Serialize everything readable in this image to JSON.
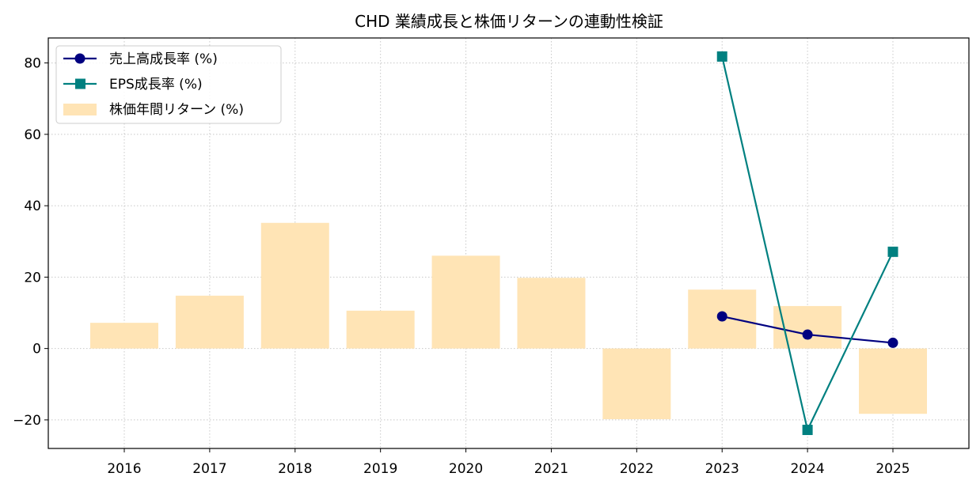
{
  "chart_data": {
    "type": "bar+line",
    "title": "CHD 業績成長と株価リターンの連動性検証",
    "xlabel": "",
    "ylabel": "",
    "categories": [
      "2016",
      "2017",
      "2018",
      "2019",
      "2020",
      "2021",
      "2022",
      "2023",
      "2024",
      "2025"
    ],
    "ylim": [
      -28,
      87
    ],
    "yticks": [
      -20,
      0,
      20,
      40,
      60,
      80
    ],
    "ytick_labels": [
      "−20",
      "0",
      "20",
      "40",
      "60",
      "80"
    ],
    "grid": true,
    "legend_position": "top-left",
    "bars": {
      "name": "株価年間リターン (%)",
      "color": "#ffe4b5",
      "values": [
        7.2,
        14.8,
        35.2,
        10.6,
        26.0,
        19.8,
        -19.8,
        16.5,
        11.9,
        -18.3
      ]
    },
    "series": [
      {
        "name": "売上高成長率 (%)",
        "color": "#000080",
        "marker": "circle",
        "points": [
          {
            "x": "2023",
            "y": 9.0
          },
          {
            "x": "2024",
            "y": 3.9
          },
          {
            "x": "2025",
            "y": 1.6
          }
        ]
      },
      {
        "name": "EPS成長率 (%)",
        "color": "#008080",
        "marker": "square",
        "points": [
          {
            "x": "2023",
            "y": 81.8
          },
          {
            "x": "2024",
            "y": -22.8
          },
          {
            "x": "2025",
            "y": 27.1
          }
        ]
      }
    ]
  }
}
